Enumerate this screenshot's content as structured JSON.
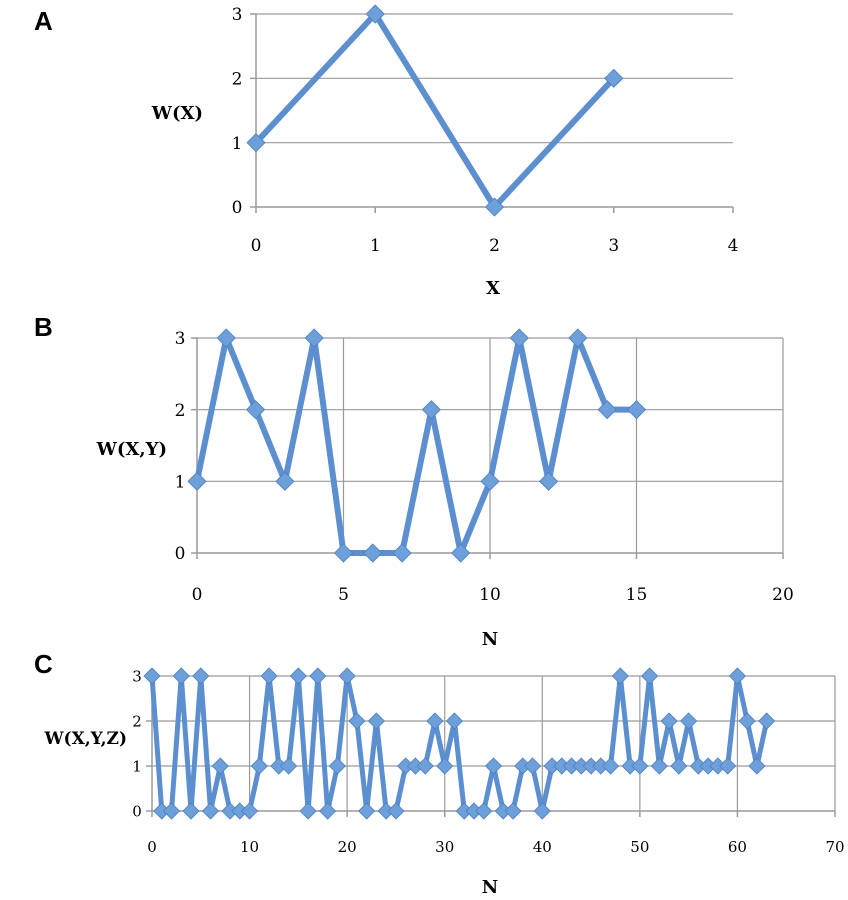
{
  "colors": {
    "series": "#5b8fcf",
    "marker": "#6d9fdb",
    "grid": "#9a9a9a"
  },
  "chart_data": [
    {
      "panel": "A",
      "type": "line",
      "xlabel": "X",
      "ylabel": "W(X)",
      "xlim": [
        0,
        4
      ],
      "ylim": [
        0,
        3
      ],
      "xticks": [
        0,
        1,
        2,
        3,
        4
      ],
      "yticks": [
        0,
        1,
        2,
        3
      ],
      "grid": "horizontal",
      "series": [
        {
          "x": [
            0,
            1,
            2,
            3
          ],
          "y": [
            1,
            3,
            0,
            2
          ]
        }
      ]
    },
    {
      "panel": "B",
      "type": "line",
      "xlabel": "N",
      "ylabel": "W(X,Y)",
      "xlim": [
        0,
        20
      ],
      "ylim": [
        0,
        3
      ],
      "xticks": [
        0,
        5,
        10,
        15,
        20
      ],
      "yticks": [
        0,
        1,
        2,
        3
      ],
      "grid": "both",
      "series": [
        {
          "x": [
            0,
            1,
            2,
            3,
            4,
            5,
            6,
            7,
            8,
            9,
            10,
            11,
            12,
            13,
            14,
            15
          ],
          "y": [
            1,
            3,
            2,
            1,
            3,
            0,
            0,
            0,
            2,
            0,
            1,
            3,
            1,
            3,
            2,
            2
          ]
        }
      ]
    },
    {
      "panel": "C",
      "type": "line",
      "xlabel": "N",
      "ylabel": "W(X,Y,Z)",
      "xlim": [
        0,
        70
      ],
      "ylim": [
        0,
        3
      ],
      "xticks": [
        0,
        10,
        20,
        30,
        40,
        50,
        60,
        70
      ],
      "yticks": [
        0,
        1,
        2,
        3
      ],
      "grid": "both",
      "series": [
        {
          "x": [
            0,
            1,
            2,
            3,
            4,
            5,
            6,
            7,
            8,
            9,
            10,
            11,
            12,
            13,
            14,
            15,
            16,
            17,
            18,
            19,
            20,
            21,
            22,
            23,
            24,
            25,
            26,
            27,
            28,
            29,
            30,
            31,
            32,
            33,
            34,
            35,
            36,
            37,
            38,
            39,
            40,
            41,
            42,
            43,
            44,
            45,
            46,
            47,
            48,
            49,
            50,
            51,
            52,
            53,
            54,
            55,
            56,
            57,
            58,
            59,
            60,
            61,
            62,
            63
          ],
          "y": [
            3,
            0,
            0,
            3,
            0,
            3,
            0,
            1,
            0,
            0,
            0,
            1,
            3,
            1,
            1,
            3,
            0,
            3,
            0,
            1,
            3,
            2,
            0,
            2,
            0,
            0,
            1,
            1,
            1,
            2,
            1,
            2,
            0,
            0,
            0,
            1,
            0,
            0,
            1,
            1,
            0,
            1,
            1,
            1,
            1,
            1,
            1,
            1,
            3,
            1,
            1,
            3,
            1,
            2,
            1,
            2,
            1,
            1,
            1,
            1,
            3,
            2,
            1,
            2
          ]
        }
      ]
    }
  ]
}
